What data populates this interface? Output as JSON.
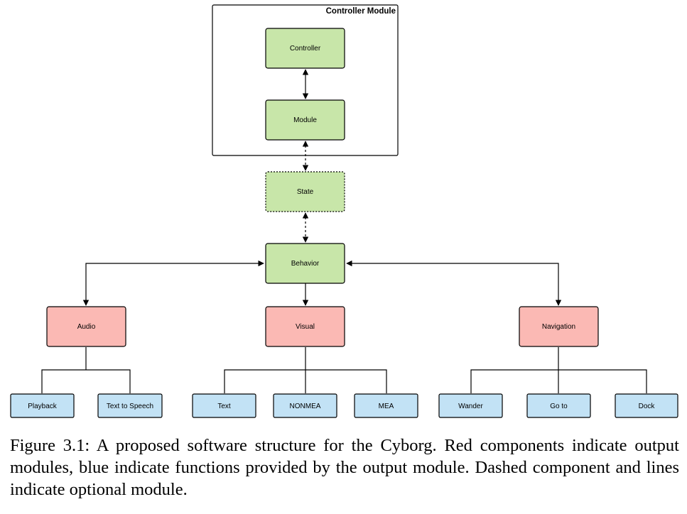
{
  "diagram": {
    "container": {
      "title": "Controller Module"
    },
    "nodes": {
      "controller": {
        "label": "Controller"
      },
      "module": {
        "label": "Module"
      },
      "state": {
        "label": "State"
      },
      "behavior": {
        "label": "Behavior"
      },
      "audio": {
        "label": "Audio"
      },
      "visual": {
        "label": "Visual"
      },
      "navigation": {
        "label": "Navigation"
      },
      "playback": {
        "label": "Playback"
      },
      "tts": {
        "label": "Text to Speech"
      },
      "text": {
        "label": "Text"
      },
      "nonmea": {
        "label": "NONMEA"
      },
      "mea": {
        "label": "MEA"
      },
      "wander": {
        "label": "Wander"
      },
      "goto": {
        "label": "Go to"
      },
      "dock": {
        "label": "Dock"
      }
    },
    "colors": {
      "green_fill": "#c8e6a9",
      "red_fill": "#fbb9b4",
      "blue_fill": "#c2e2f5",
      "stroke": "#000000"
    }
  },
  "caption": "Figure 3.1: A proposed software structure for the Cyborg. Red components indicate output modules, blue indicate functions provided by the output module. Dashed component and lines indicate optional module."
}
